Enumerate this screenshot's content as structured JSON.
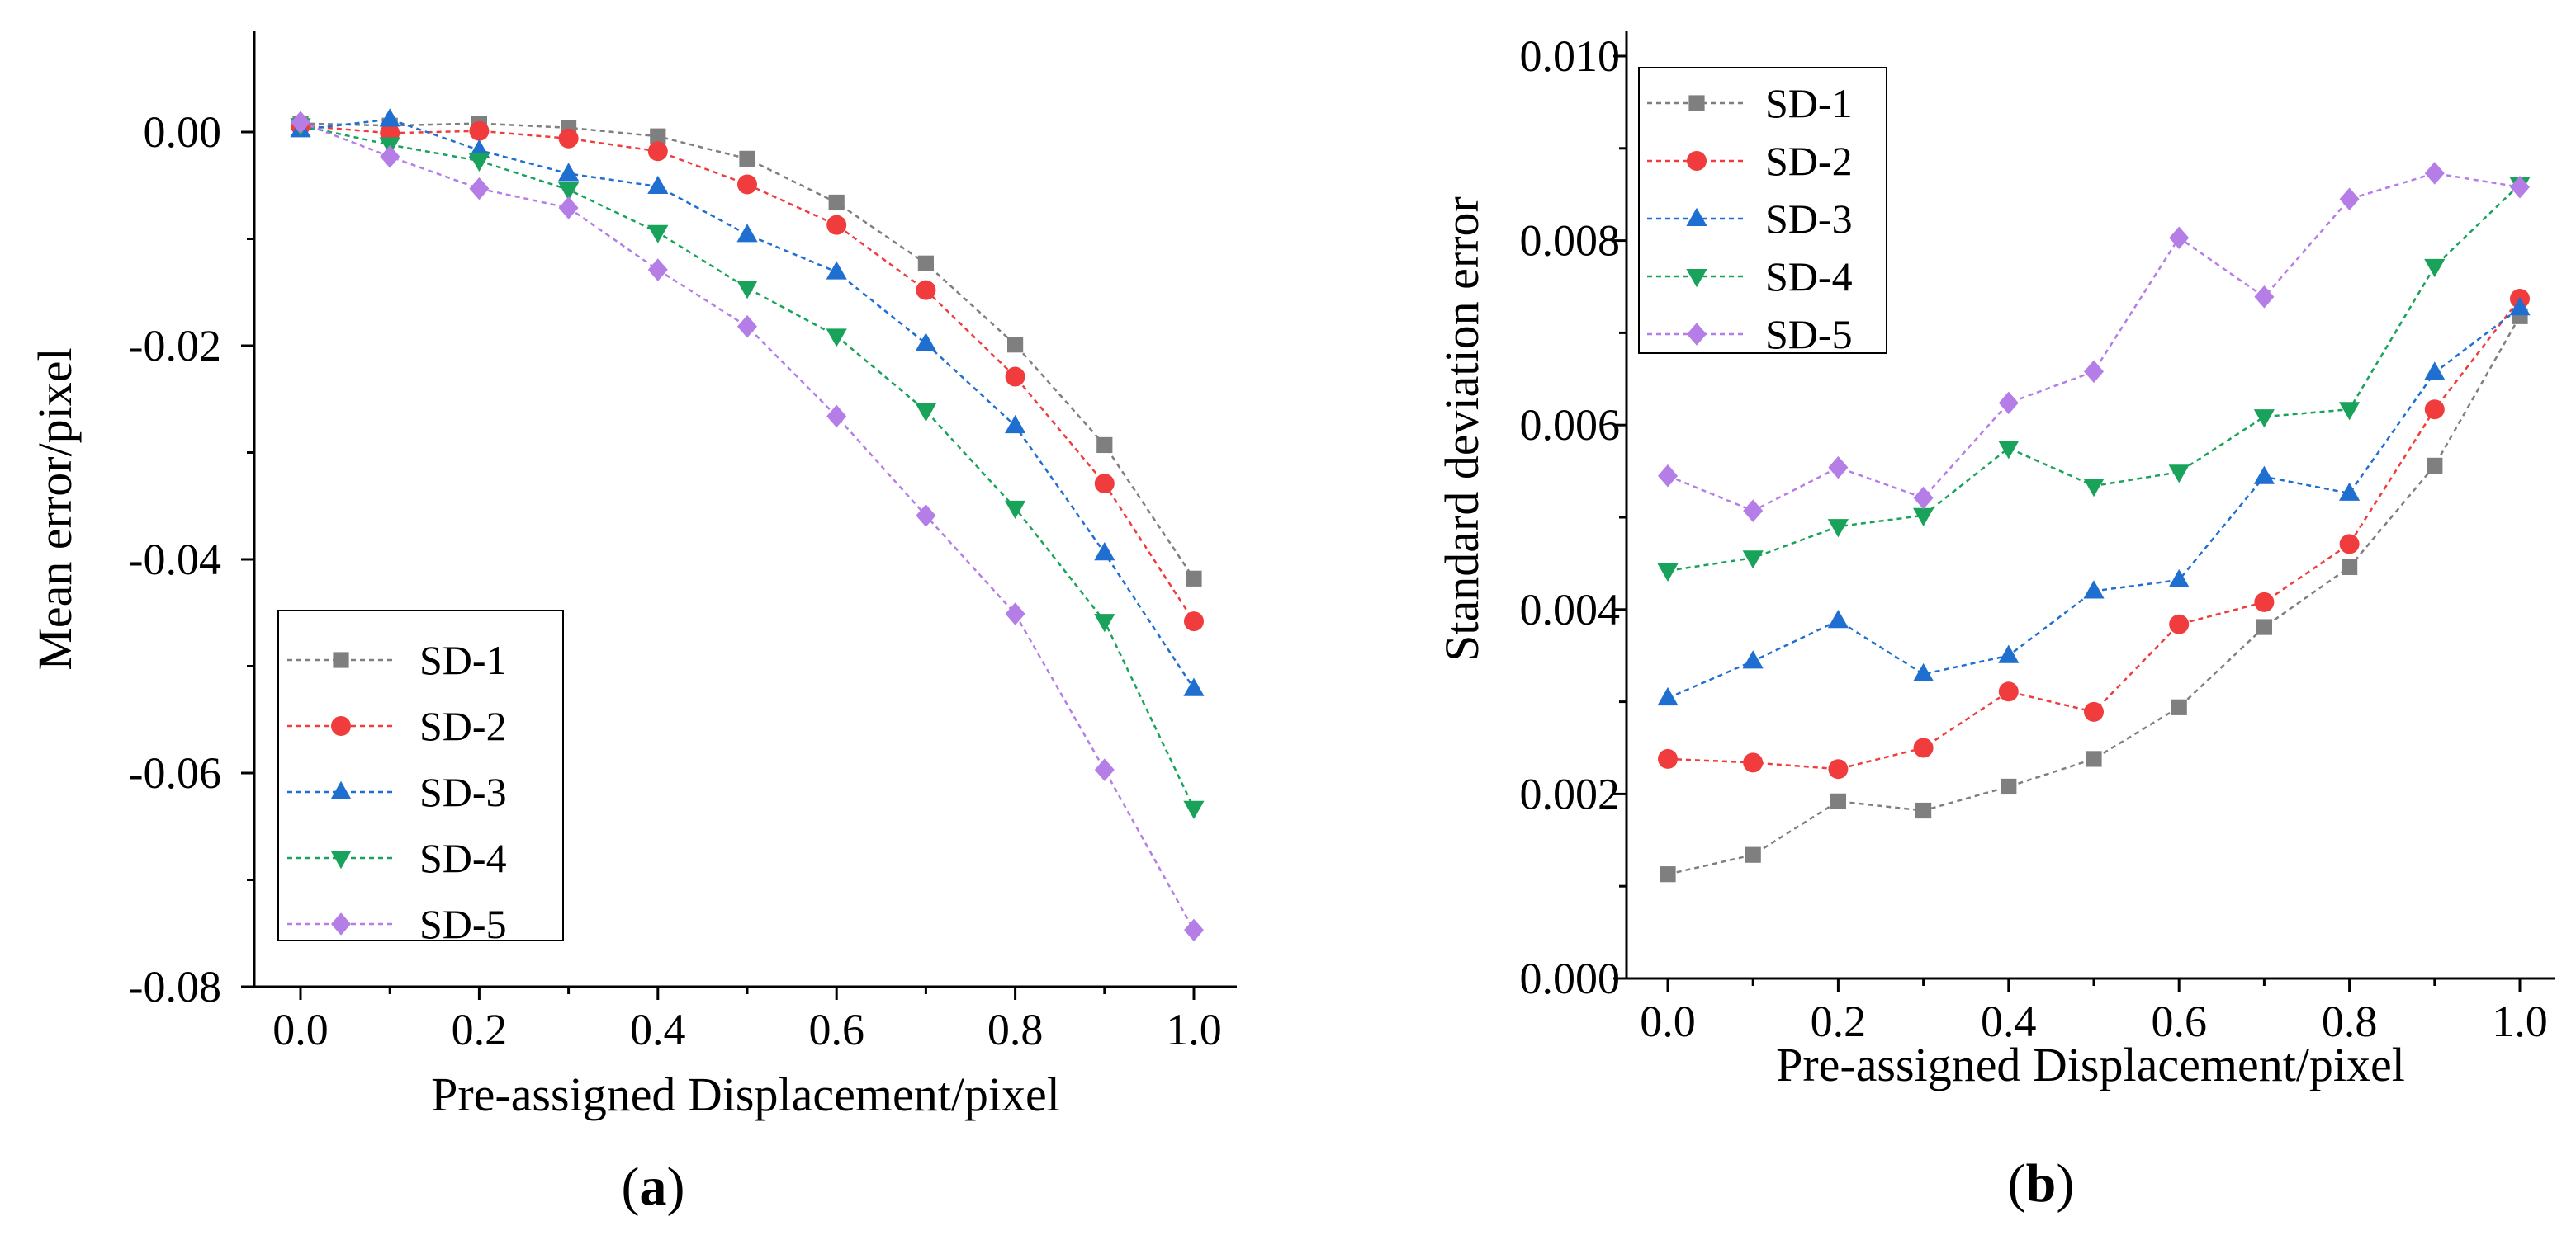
{
  "chart_data": [
    {
      "type": "line",
      "panel_label": "a",
      "xlabel": "Pre-assigned Displacement/pixel",
      "ylabel": "Mean error/pixel",
      "xlim": [
        -0.05,
        1.05
      ],
      "ylim": [
        -0.08,
        0.01
      ],
      "x_ticks": [
        "0.0",
        "0.2",
        "0.4",
        "0.6",
        "0.8",
        "1.0"
      ],
      "y_ticks": [
        "0.00",
        "-0.02",
        "-0.04",
        "-0.06",
        "-0.08"
      ],
      "legend_position": "bottom-left",
      "x": [
        0.0,
        0.1,
        0.2,
        0.3,
        0.4,
        0.5,
        0.6,
        0.7,
        0.8,
        0.9,
        1.0
      ],
      "series": [
        {
          "name": "SD-1",
          "color": "#7f7f7f",
          "marker": "square",
          "values": [
            0.0008,
            0.0006,
            0.0008,
            0.0004,
            -0.0004,
            -0.0025,
            -0.0066,
            -0.0123,
            -0.0199,
            -0.0293,
            -0.0418
          ]
        },
        {
          "name": "SD-2",
          "color": "#f03c3c",
          "marker": "circle",
          "values": [
            0.0006,
            -0.0001,
            0.0001,
            -0.0006,
            -0.0018,
            -0.0049,
            -0.0087,
            -0.0148,
            -0.0229,
            -0.0329,
            -0.0458
          ]
        },
        {
          "name": "SD-3",
          "color": "#1f6fd1",
          "marker": "triangle-up",
          "values": [
            0.0002,
            0.0012,
            -0.0017,
            -0.0039,
            -0.0051,
            -0.0096,
            -0.0131,
            -0.0198,
            -0.0275,
            -0.0394,
            -0.0521
          ]
        },
        {
          "name": "SD-4",
          "color": "#19a35a",
          "marker": "triangle-down",
          "values": [
            0.0006,
            -0.0012,
            -0.0027,
            -0.0054,
            -0.0094,
            -0.0146,
            -0.0191,
            -0.0261,
            -0.0352,
            -0.0458,
            -0.0633
          ]
        },
        {
          "name": "SD-5",
          "color": "#b57ee6",
          "marker": "diamond",
          "values": [
            0.0009,
            -0.0023,
            -0.0053,
            -0.0071,
            -0.0129,
            -0.0182,
            -0.0266,
            -0.0359,
            -0.0451,
            -0.0597,
            -0.0747
          ]
        }
      ]
    },
    {
      "type": "line",
      "panel_label": "b",
      "xlabel": "Pre-assigned Displacement/pixel",
      "ylabel": "Standard deviation error",
      "xlim": [
        -0.05,
        1.05
      ],
      "ylim": [
        0.0,
        0.01
      ],
      "x_ticks": [
        "0.0",
        "0.2",
        "0.4",
        "0.6",
        "0.8",
        "1.0"
      ],
      "y_ticks": [
        "0.000",
        "0.002",
        "0.004",
        "0.006",
        "0.008",
        "0.010"
      ],
      "legend_position": "top-left",
      "x": [
        0.0,
        0.1,
        0.2,
        0.3,
        0.4,
        0.5,
        0.6,
        0.7,
        0.8,
        0.9,
        1.0
      ],
      "series": [
        {
          "name": "SD-1",
          "color": "#7f7f7f",
          "marker": "square",
          "values": [
            0.00113,
            0.00134,
            0.00192,
            0.00182,
            0.00208,
            0.00238,
            0.00294,
            0.00381,
            0.00446,
            0.00556,
            0.00718
          ]
        },
        {
          "name": "SD-2",
          "color": "#f03c3c",
          "marker": "circle",
          "values": [
            0.00238,
            0.00234,
            0.00227,
            0.0025,
            0.00311,
            0.00289,
            0.00384,
            0.00408,
            0.00471,
            0.00617,
            0.00737
          ]
        },
        {
          "name": "SD-3",
          "color": "#1f6fd1",
          "marker": "triangle-up",
          "values": [
            0.00304,
            0.00344,
            0.00388,
            0.0033,
            0.0035,
            0.0042,
            0.00432,
            0.00544,
            0.00526,
            0.00657,
            0.00727
          ]
        },
        {
          "name": "SD-4",
          "color": "#19a35a",
          "marker": "triangle-down",
          "values": [
            0.00442,
            0.00456,
            0.0049,
            0.00502,
            0.00575,
            0.00534,
            0.00549,
            0.00609,
            0.00617,
            0.00772,
            0.00861
          ]
        },
        {
          "name": "SD-5",
          "color": "#b57ee6",
          "marker": "diamond",
          "values": [
            0.00545,
            0.00507,
            0.00554,
            0.00521,
            0.00624,
            0.00658,
            0.00803,
            0.00739,
            0.00845,
            0.00873,
            0.00858
          ]
        }
      ]
    }
  ]
}
